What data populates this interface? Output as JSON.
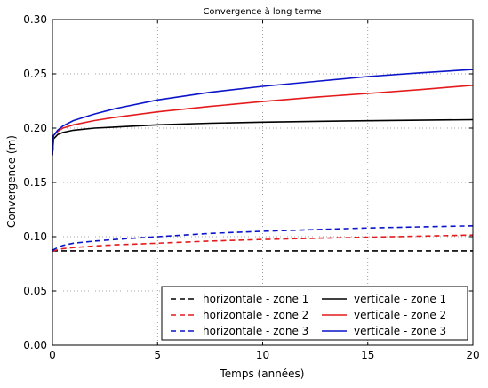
{
  "chart_data": {
    "type": "line",
    "title": "Convergence à long terme",
    "xlabel": "Temps (années)",
    "ylabel": "Convergence (m)",
    "xlim": [
      0,
      20
    ],
    "ylim": [
      0,
      0.3
    ],
    "x_ticks": [
      0,
      5,
      10,
      15,
      20
    ],
    "x_tick_labels": [
      "0",
      "5",
      "10",
      "15",
      "20"
    ],
    "y_ticks": [
      0,
      0.05,
      0.1,
      0.15,
      0.2,
      0.25,
      0.3
    ],
    "y_tick_labels": [
      "0.00",
      "0.05",
      "0.10",
      "0.15",
      "0.20",
      "0.25",
      "0.30"
    ],
    "grid": true,
    "legend_position": "bottom-right",
    "x": [
      0,
      0.05,
      0.25,
      0.5,
      1,
      2,
      3,
      5,
      7.5,
      10,
      12.5,
      15,
      17.5,
      20
    ],
    "series": [
      {
        "name": "horizontale - zone 1",
        "color": "#000000",
        "style": "dashed",
        "values": [
          0.087,
          0.087,
          0.087,
          0.087,
          0.087,
          0.087,
          0.087,
          0.087,
          0.087,
          0.087,
          0.087,
          0.087,
          0.087,
          0.087
        ]
      },
      {
        "name": "horizontale - zone 2",
        "color": "#e41a1c",
        "style": "dashed",
        "values": [
          0.087,
          0.087,
          0.088,
          0.089,
          0.09,
          0.0915,
          0.0925,
          0.094,
          0.096,
          0.0975,
          0.0985,
          0.0995,
          0.1005,
          0.1015
        ]
      },
      {
        "name": "horizontale - zone 3",
        "color": "#0a14c8",
        "style": "dashed",
        "values": [
          0.087,
          0.088,
          0.09,
          0.092,
          0.094,
          0.096,
          0.0975,
          0.1,
          0.103,
          0.105,
          0.1065,
          0.108,
          0.109,
          0.11
        ]
      },
      {
        "name": "verticale - zone 1",
        "color": "#000000",
        "style": "solid",
        "values": [
          0.175,
          0.19,
          0.194,
          0.196,
          0.198,
          0.2,
          0.201,
          0.203,
          0.2045,
          0.2055,
          0.2062,
          0.2068,
          0.2073,
          0.2078
        ]
      },
      {
        "name": "verticale - zone 2",
        "color": "#e41a1c",
        "style": "solid",
        "values": [
          0.175,
          0.193,
          0.197,
          0.2,
          0.203,
          0.207,
          0.21,
          0.215,
          0.22,
          0.2245,
          0.2285,
          0.232,
          0.2355,
          0.2395
        ]
      },
      {
        "name": "verticale - zone 3",
        "color": "#0a14c8",
        "style": "solid",
        "values": [
          0.175,
          0.193,
          0.198,
          0.202,
          0.207,
          0.213,
          0.218,
          0.226,
          0.233,
          0.2385,
          0.243,
          0.2475,
          0.251,
          0.254
        ]
      }
    ]
  }
}
